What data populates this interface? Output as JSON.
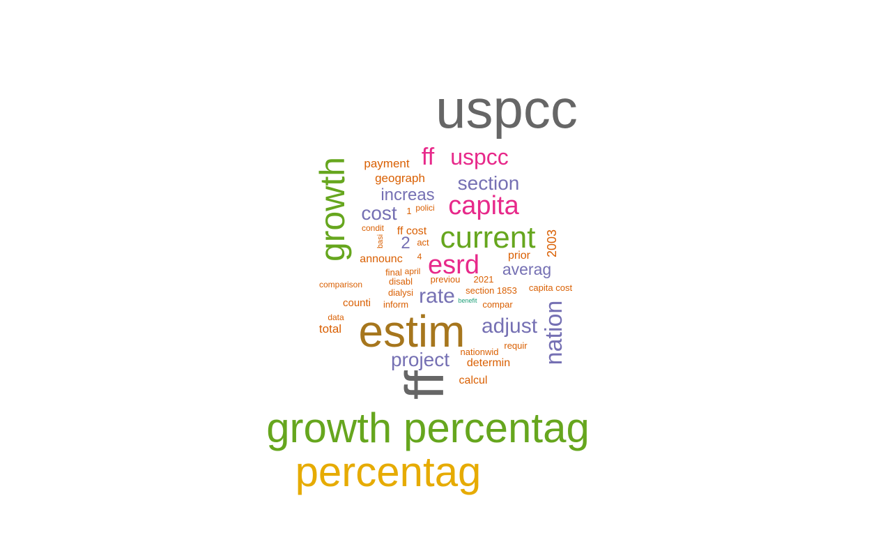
{
  "palette": {
    "gray": "#666666",
    "green": "#66a61e",
    "gold": "#e6ab02",
    "brown": "#a6761d",
    "pink": "#e7298a",
    "purple": "#7570b3",
    "orange": "#d95f02",
    "teal": "#1b9e77"
  },
  "words": [
    {
      "text": "uspcc",
      "color": "gray"
    },
    {
      "text": "growth percentag",
      "color": "green"
    },
    {
      "text": "percentag",
      "color": "gold"
    },
    {
      "text": "estim",
      "color": "brown"
    },
    {
      "text": "ff",
      "color": "gray"
    },
    {
      "text": "growth",
      "color": "green"
    },
    {
      "text": "current",
      "color": "green"
    },
    {
      "text": "capita",
      "color": "pink"
    },
    {
      "text": "esrd",
      "color": "pink"
    },
    {
      "text": "ff",
      "color": "pink"
    },
    {
      "text": "uspcc",
      "color": "pink"
    },
    {
      "text": "section",
      "color": "purple"
    },
    {
      "text": "increas",
      "color": "purple"
    },
    {
      "text": "cost",
      "color": "purple"
    },
    {
      "text": "adjust",
      "color": "purple"
    },
    {
      "text": "averag",
      "color": "purple"
    },
    {
      "text": "rate",
      "color": "purple"
    },
    {
      "text": "project",
      "color": "purple"
    },
    {
      "text": "nation",
      "color": "purple"
    },
    {
      "text": "2",
      "color": "purple"
    },
    {
      "text": "payment",
      "color": "orange"
    },
    {
      "text": "geograph",
      "color": "orange"
    },
    {
      "text": "polici",
      "color": "orange"
    },
    {
      "text": "1",
      "color": "orange"
    },
    {
      "text": "condit",
      "color": "orange"
    },
    {
      "text": "ff cost",
      "color": "orange"
    },
    {
      "text": "basi",
      "color": "orange"
    },
    {
      "text": "act",
      "color": "orange"
    },
    {
      "text": "2003",
      "color": "orange"
    },
    {
      "text": "announc",
      "color": "orange"
    },
    {
      "text": "4",
      "color": "orange"
    },
    {
      "text": "prior",
      "color": "orange"
    },
    {
      "text": "final",
      "color": "orange"
    },
    {
      "text": "april",
      "color": "orange"
    },
    {
      "text": "disabl",
      "color": "orange"
    },
    {
      "text": "previou",
      "color": "orange"
    },
    {
      "text": "2021",
      "color": "orange"
    },
    {
      "text": "comparison",
      "color": "orange"
    },
    {
      "text": "dialysi",
      "color": "orange"
    },
    {
      "text": "section 1853",
      "color": "orange"
    },
    {
      "text": "capita cost",
      "color": "orange"
    },
    {
      "text": "counti",
      "color": "orange"
    },
    {
      "text": "inform",
      "color": "orange"
    },
    {
      "text": "benefit",
      "color": "teal"
    },
    {
      "text": "compar",
      "color": "orange"
    },
    {
      "text": "data",
      "color": "orange"
    },
    {
      "text": "total",
      "color": "orange"
    },
    {
      "text": "requir",
      "color": "orange"
    },
    {
      "text": "nationwid",
      "color": "orange"
    },
    {
      "text": "determin",
      "color": "orange"
    },
    {
      "text": "calcul",
      "color": "orange"
    }
  ]
}
